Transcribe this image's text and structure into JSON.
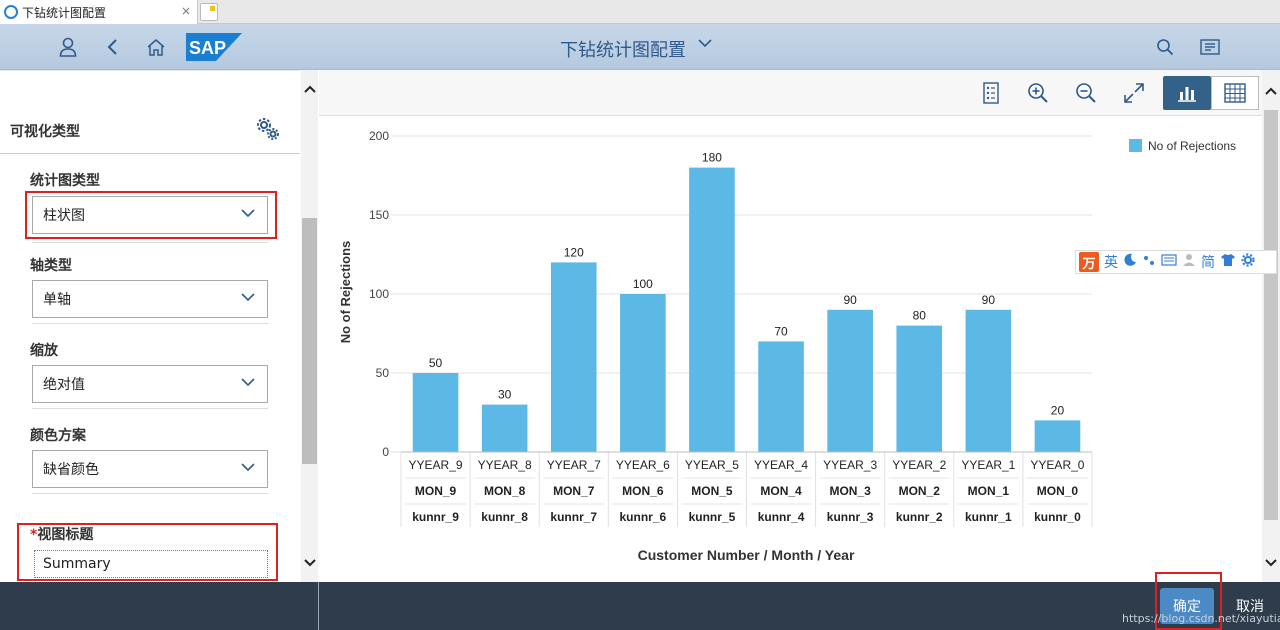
{
  "browser": {
    "tab_title": "下钻统计图配置",
    "tab_close": "×"
  },
  "shell": {
    "title": "下钻统计图配置",
    "logo_text": "SAP"
  },
  "left_panel": {
    "section_title": "可视化类型",
    "fields": [
      {
        "label": "统计图类型",
        "value": "柱状图"
      },
      {
        "label": "轴类型",
        "value": "单轴"
      },
      {
        "label": "缩放",
        "value": "绝对值"
      },
      {
        "label": "颜色方案",
        "value": "缺省颜色"
      }
    ],
    "view_title": {
      "required_mark": "*",
      "label": "视图标题",
      "value": "Summary"
    }
  },
  "ime_toolbar": {
    "logo": "万",
    "items": [
      "英",
      "简"
    ]
  },
  "footer": {
    "ok_label": "确定",
    "cancel_label": "取消",
    "watermark": "https://blog.csdn.net/xiayutian_c"
  },
  "colors": {
    "bar": "#5cb8e4",
    "shell_accent": "#2f5a8a",
    "footer_bg": "#2f3c4b",
    "highlight": "#e02020"
  },
  "chart_data": {
    "type": "bar",
    "categories": [
      [
        "YYEAR_9",
        "MON_9",
        "kunnr_9"
      ],
      [
        "YYEAR_8",
        "MON_8",
        "kunnr_8"
      ],
      [
        "YYEAR_7",
        "MON_7",
        "kunnr_7"
      ],
      [
        "YYEAR_6",
        "MON_6",
        "kunnr_6"
      ],
      [
        "YYEAR_5",
        "MON_5",
        "kunnr_5"
      ],
      [
        "YYEAR_4",
        "MON_4",
        "kunnr_4"
      ],
      [
        "YYEAR_3",
        "MON_3",
        "kunnr_3"
      ],
      [
        "YYEAR_2",
        "MON_2",
        "kunnr_2"
      ],
      [
        "YYEAR_1",
        "MON_1",
        "kunnr_1"
      ],
      [
        "YYEAR_0",
        "MON_0",
        "kunnr_0"
      ]
    ],
    "series": [
      {
        "name": "No of Rejections",
        "values": [
          50,
          30,
          120,
          100,
          180,
          70,
          90,
          80,
          90,
          20
        ]
      }
    ],
    "xlabel": "Customer Number / Month / Year",
    "ylabel": "No of Rejections",
    "ylim": [
      0,
      200
    ],
    "yticks": [
      0,
      50,
      100,
      150,
      200
    ],
    "grid": true,
    "legend": "top-right",
    "data_labels": true
  }
}
